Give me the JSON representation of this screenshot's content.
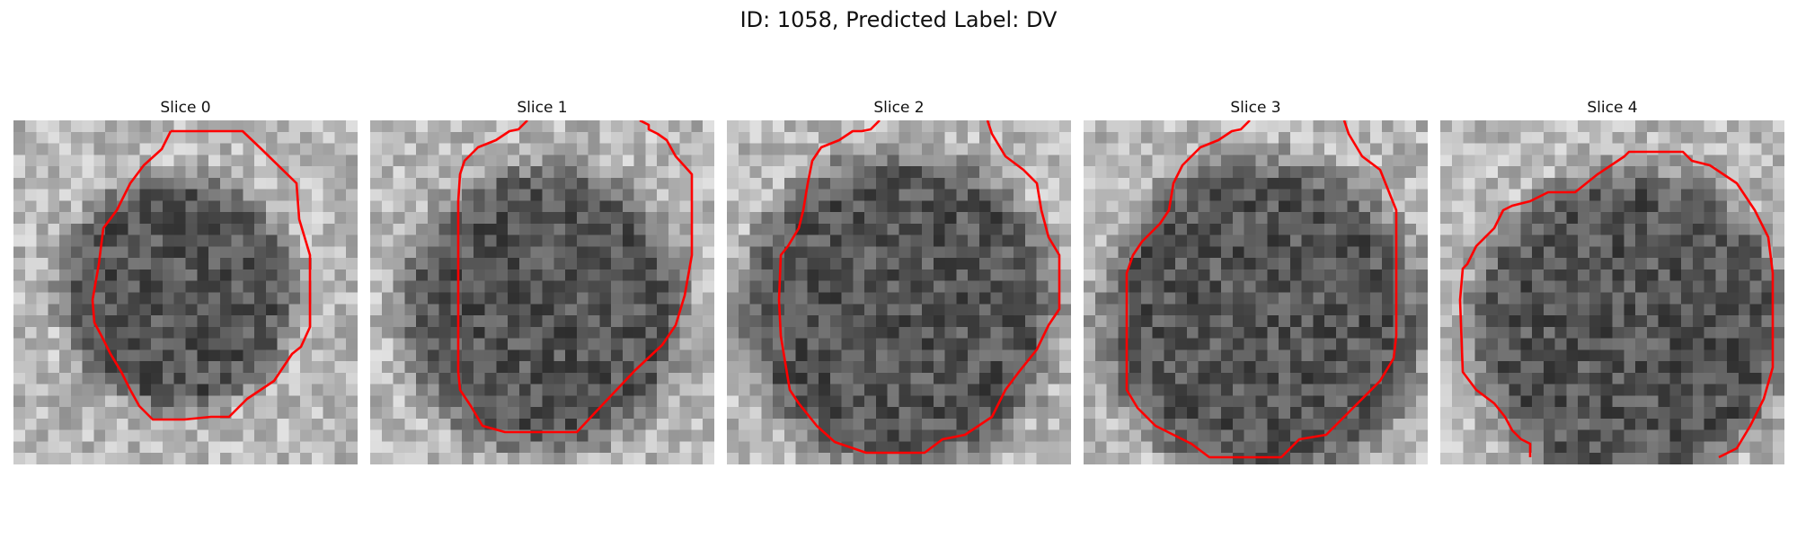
{
  "figure": {
    "title": "ID: 1058, Predicted Label: DV"
  },
  "slices": [
    {
      "title": "Slice 0"
    },
    {
      "title": "Slice 1"
    },
    {
      "title": "Slice 2"
    },
    {
      "title": "Slice 3"
    },
    {
      "title": "Slice 4"
    }
  ],
  "colors": {
    "contour": "#ff0000",
    "background": "#ffffff"
  },
  "colormap": "gray"
}
